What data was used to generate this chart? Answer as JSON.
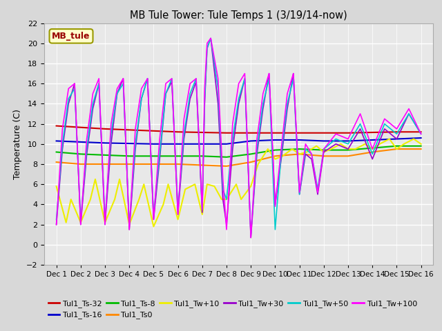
{
  "title": "MB Tule Tower: Tule Temps 1 (3/19/14-now)",
  "ylabel": "Temperature (C)",
  "ylim": [
    -2,
    22
  ],
  "yticks": [
    -2,
    0,
    2,
    4,
    6,
    8,
    10,
    12,
    14,
    16,
    18,
    20,
    22
  ],
  "xlim": [
    0.5,
    16.5
  ],
  "xtick_labels": [
    "Dec 1",
    "Dec 2",
    "Dec 3",
    "Dec 4",
    "Dec 5",
    "Dec 6",
    "Dec 7",
    "Dec 8",
    "Dec 9",
    "Dec 10",
    "Dec 11",
    "Dec 12",
    "Dec 13",
    "Dec 14",
    "Dec 15",
    "Dec 16"
  ],
  "xtick_positions": [
    1,
    2,
    3,
    4,
    5,
    6,
    7,
    8,
    9,
    10,
    11,
    12,
    13,
    14,
    15,
    16
  ],
  "fig_bg_color": "#d8d8d8",
  "plot_bg_color": "#e8e8e8",
  "grid_color": "#ffffff",
  "legend_label": "MB_tule",
  "legend_box_bg": "#ffffcc",
  "legend_box_edge": "#999900",
  "series": [
    {
      "name": "Tul1_Ts-32",
      "color": "#cc0000",
      "linewidth": 1.5,
      "x": [
        1,
        2,
        3,
        4,
        5,
        6,
        7,
        8,
        9,
        10,
        11,
        12,
        13,
        14,
        15,
        16
      ],
      "y": [
        11.8,
        11.65,
        11.5,
        11.4,
        11.3,
        11.2,
        11.15,
        11.1,
        11.1,
        11.1,
        11.1,
        11.1,
        11.1,
        11.15,
        11.2,
        11.2
      ]
    },
    {
      "name": "Tul1_Ts-16",
      "color": "#0000cc",
      "linewidth": 1.5,
      "x": [
        1,
        2,
        3,
        4,
        5,
        6,
        7,
        8,
        9,
        10,
        11,
        12,
        13,
        14,
        15,
        16
      ],
      "y": [
        10.3,
        10.2,
        10.1,
        10.05,
        10.0,
        10.0,
        10.0,
        10.0,
        10.3,
        10.4,
        10.4,
        10.3,
        10.3,
        10.4,
        10.5,
        10.6
      ]
    },
    {
      "name": "Tul1_Ts-8",
      "color": "#00bb00",
      "linewidth": 1.5,
      "x": [
        1,
        2,
        3,
        4,
        5,
        6,
        7,
        8,
        9,
        10,
        11,
        12,
        13,
        14,
        15,
        16
      ],
      "y": [
        9.2,
        9.0,
        8.9,
        8.8,
        8.8,
        8.8,
        8.8,
        8.7,
        9.0,
        9.4,
        9.5,
        9.4,
        9.4,
        9.6,
        9.8,
        9.8
      ]
    },
    {
      "name": "Tul1_Ts0",
      "color": "#ff8800",
      "linewidth": 1.5,
      "x": [
        1,
        2,
        3,
        4,
        5,
        6,
        7,
        8,
        9,
        10,
        11,
        12,
        13,
        14,
        15,
        16
      ],
      "y": [
        8.2,
        8.0,
        8.0,
        8.0,
        8.0,
        8.0,
        7.9,
        7.8,
        8.2,
        8.8,
        9.0,
        8.8,
        8.8,
        9.2,
        9.5,
        9.5
      ]
    },
    {
      "name": "Tul1_Tw+10",
      "color": "#eeee00",
      "linewidth": 1.5,
      "x": [
        1,
        1.4,
        1.6,
        2,
        2.4,
        2.6,
        3,
        3.4,
        3.6,
        4,
        4.4,
        4.6,
        5,
        5.4,
        5.6,
        6,
        6.3,
        6.7,
        7,
        7.2,
        7.5,
        7.8,
        8,
        8.4,
        8.6,
        9,
        9.3,
        9.7,
        10,
        10.3,
        10.7,
        11,
        11.3,
        11.7,
        12,
        12.3,
        12.7,
        13,
        13.3,
        13.7,
        14,
        14.3,
        14.7,
        15,
        15.3,
        15.7,
        16
      ],
      "y": [
        5.8,
        2.2,
        4.5,
        2.2,
        4.5,
        6.5,
        2.2,
        4.5,
        6.5,
        2.0,
        4.5,
        6.0,
        1.8,
        4.0,
        6.0,
        2.5,
        5.5,
        6.0,
        3.0,
        6.0,
        5.8,
        4.5,
        4.5,
        6.0,
        4.5,
        5.8,
        8.0,
        9.5,
        8.5,
        8.8,
        9.5,
        9.0,
        9.2,
        9.8,
        9.2,
        9.5,
        10.0,
        9.5,
        9.5,
        10.0,
        9.5,
        10.0,
        10.5,
        9.5,
        10.0,
        10.5,
        10.0
      ]
    },
    {
      "name": "Tul1_Tw+30",
      "color": "#9900cc",
      "linewidth": 1.2,
      "x": [
        1,
        1.25,
        1.5,
        1.75,
        2,
        2.25,
        2.5,
        2.75,
        3,
        3.25,
        3.5,
        3.75,
        4,
        4.25,
        4.5,
        4.75,
        5,
        5.25,
        5.5,
        5.75,
        6,
        6.25,
        6.5,
        6.75,
        7,
        7.1,
        7.2,
        7.35,
        7.65,
        7.85,
        8,
        8.25,
        8.5,
        8.75,
        9,
        9.25,
        9.5,
        9.75,
        10,
        10.25,
        10.5,
        10.75,
        11,
        11.25,
        11.5,
        11.75,
        12,
        12.5,
        13,
        13.5,
        14,
        14.5,
        15,
        15.5,
        16
      ],
      "y": [
        2.0,
        9.5,
        14.0,
        16.0,
        2.0,
        9.0,
        13.5,
        16.0,
        2.0,
        10.0,
        15.0,
        16.5,
        1.5,
        9.5,
        14.5,
        16.5,
        2.5,
        8.5,
        15.0,
        16.2,
        3.0,
        10.5,
        14.5,
        16.2,
        3.2,
        14.0,
        19.5,
        20.5,
        14.0,
        4.5,
        2.0,
        9.5,
        14.0,
        16.5,
        0.7,
        9.0,
        13.5,
        17.0,
        4.0,
        8.5,
        13.5,
        17.0,
        5.0,
        9.0,
        8.5,
        5.0,
        9.2,
        10.0,
        9.5,
        11.5,
        8.5,
        11.5,
        10.5,
        13.0,
        11.0
      ]
    },
    {
      "name": "Tul1_Tw+50",
      "color": "#00cccc",
      "linewidth": 1.2,
      "x": [
        1,
        1.25,
        1.5,
        1.75,
        2,
        2.25,
        2.5,
        2.75,
        3,
        3.25,
        3.5,
        3.75,
        4,
        4.25,
        4.5,
        4.75,
        5,
        5.25,
        5.5,
        5.75,
        6,
        6.25,
        6.5,
        6.75,
        7,
        7.1,
        7.2,
        7.35,
        7.65,
        7.85,
        8,
        8.25,
        8.5,
        8.75,
        9,
        9.25,
        9.5,
        9.75,
        10,
        10.25,
        10.5,
        10.75,
        11,
        11.25,
        11.5,
        11.75,
        12,
        12.5,
        13,
        13.5,
        14,
        14.5,
        15,
        15.5,
        16
      ],
      "y": [
        2.5,
        10.0,
        14.5,
        15.5,
        2.5,
        9.5,
        14.0,
        16.0,
        2.5,
        11.0,
        15.0,
        16.0,
        2.0,
        10.0,
        14.5,
        16.5,
        3.0,
        9.0,
        15.0,
        16.5,
        3.5,
        11.0,
        15.0,
        16.5,
        3.5,
        14.5,
        19.5,
        20.5,
        15.5,
        5.5,
        4.5,
        10.5,
        14.5,
        16.5,
        1.0,
        9.5,
        14.0,
        16.5,
        1.5,
        9.0,
        14.0,
        16.5,
        5.0,
        9.5,
        9.0,
        5.5,
        9.5,
        10.5,
        10.0,
        12.0,
        9.0,
        12.0,
        11.0,
        13.0,
        11.0
      ]
    },
    {
      "name": "Tul1_Tw+100",
      "color": "#ff00ff",
      "linewidth": 1.2,
      "x": [
        1,
        1.25,
        1.5,
        1.75,
        2,
        2.25,
        2.5,
        2.75,
        3,
        3.25,
        3.5,
        3.75,
        4,
        4.25,
        4.5,
        4.75,
        5,
        5.25,
        5.5,
        5.75,
        6,
        6.25,
        6.5,
        6.75,
        7,
        7.1,
        7.2,
        7.35,
        7.65,
        7.85,
        8,
        8.25,
        8.5,
        8.75,
        9,
        9.25,
        9.5,
        9.75,
        10,
        10.25,
        10.5,
        10.75,
        11,
        11.25,
        11.5,
        11.75,
        12,
        12.5,
        13,
        13.5,
        14,
        14.5,
        15,
        15.5,
        16
      ],
      "y": [
        2.0,
        11.5,
        15.5,
        16.0,
        2.0,
        10.5,
        15.0,
        16.5,
        2.0,
        12.0,
        15.5,
        16.5,
        1.5,
        11.5,
        15.5,
        16.5,
        2.5,
        10.5,
        16.0,
        16.5,
        3.0,
        12.5,
        16.0,
        16.5,
        3.5,
        15.5,
        20.0,
        20.5,
        16.5,
        6.5,
        1.5,
        12.0,
        16.0,
        17.0,
        0.7,
        10.5,
        15.0,
        17.0,
        3.8,
        9.5,
        15.0,
        17.0,
        5.2,
        10.0,
        9.0,
        5.2,
        9.5,
        11.0,
        10.5,
        13.0,
        9.5,
        12.5,
        11.5,
        13.5,
        11.0
      ]
    }
  ],
  "legend_entries": [
    {
      "name": "Tul1_Ts-32",
      "color": "#cc0000"
    },
    {
      "name": "Tul1_Ts-16",
      "color": "#0000cc"
    },
    {
      "name": "Tul1_Ts-8",
      "color": "#00bb00"
    },
    {
      "name": "Tul1_Ts0",
      "color": "#ff8800"
    },
    {
      "name": "Tul1_Tw+10",
      "color": "#eeee00"
    },
    {
      "name": "Tul1_Tw+30",
      "color": "#9900cc"
    },
    {
      "name": "Tul1_Tw+50",
      "color": "#00cccc"
    },
    {
      "name": "Tul1_Tw+100",
      "color": "#ff00ff"
    }
  ]
}
